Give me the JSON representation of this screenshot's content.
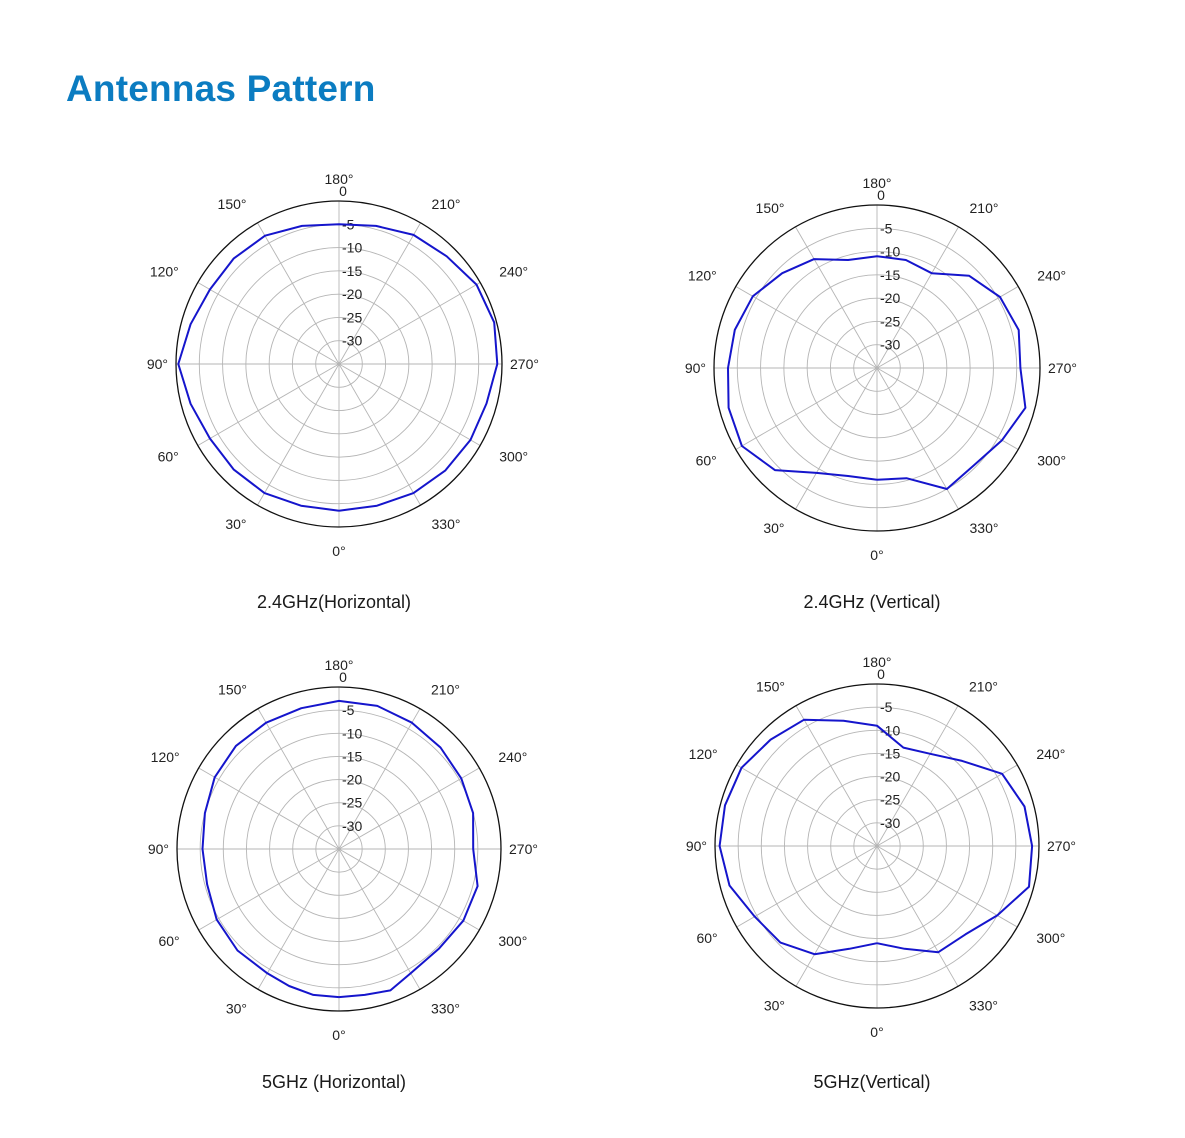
{
  "page": {
    "title": "Antennas Pattern",
    "accent_color": "#0b7cc1"
  },
  "chart_data": [
    {
      "type": "polar",
      "title": "2.4GHz(Horizontal)",
      "r_ticks": [
        "0",
        "-5",
        "-10",
        "-15",
        "-20",
        "-25",
        "-30"
      ],
      "r_range_db": [
        -35,
        0
      ],
      "angle_labels": [
        {
          "deg": 180,
          "label": "180°"
        },
        {
          "deg": 210,
          "label": "210°"
        },
        {
          "deg": 240,
          "label": "240°"
        },
        {
          "deg": 270,
          "label": "270°"
        },
        {
          "deg": 300,
          "label": "300°"
        },
        {
          "deg": 330,
          "label": "330°"
        },
        {
          "deg": 0,
          "label": "0°"
        },
        {
          "deg": 30,
          "label": "30°"
        },
        {
          "deg": 60,
          "label": "60°"
        },
        {
          "deg": 90,
          "label": "90°"
        },
        {
          "deg": 120,
          "label": "120°"
        },
        {
          "deg": 150,
          "label": "150°"
        }
      ],
      "line_color": "#1515cc",
      "series": [
        {
          "angles_deg": [
            0,
            15,
            30,
            45,
            60,
            75,
            90,
            105,
            120,
            135,
            150,
            165,
            180,
            195,
            210,
            225,
            240,
            255,
            270,
            285,
            300,
            315,
            330,
            345
          ],
          "gain_db": [
            -3.5,
            -3.5,
            -3,
            -3,
            -3,
            -2,
            -0.5,
            -2,
            -3,
            -3,
            -3.2,
            -4.3,
            -5,
            -4.3,
            -3,
            -2.3,
            -0.9,
            -0.5,
            -1,
            -2.2,
            -2.4,
            -2.7,
            -3,
            -3.5
          ]
        }
      ]
    },
    {
      "type": "polar",
      "title": "2.4GHz (Vertical)",
      "r_ticks": [
        "0",
        "-5",
        "-10",
        "-15",
        "-20",
        "-25",
        "-30"
      ],
      "r_range_db": [
        -35,
        0
      ],
      "angle_labels": [
        {
          "deg": 180,
          "label": "180°"
        },
        {
          "deg": 210,
          "label": "210°"
        },
        {
          "deg": 240,
          "label": "240°"
        },
        {
          "deg": 270,
          "label": "270°"
        },
        {
          "deg": 300,
          "label": "300°"
        },
        {
          "deg": 330,
          "label": "330°"
        },
        {
          "deg": 0,
          "label": "0°"
        },
        {
          "deg": 30,
          "label": "30°"
        },
        {
          "deg": 60,
          "label": "60°"
        },
        {
          "deg": 90,
          "label": "90°"
        },
        {
          "deg": 120,
          "label": "120°"
        },
        {
          "deg": 150,
          "label": "150°"
        }
      ],
      "line_color": "#1515cc",
      "series": [
        {
          "angles_deg": [
            0,
            15,
            30,
            45,
            60,
            75,
            90,
            105,
            120,
            135,
            150,
            165,
            180,
            195,
            210,
            225,
            240,
            255,
            270,
            285,
            300,
            315,
            330,
            345
          ],
          "gain_db": [
            -11,
            -11,
            -9,
            -4,
            -1.5,
            -2,
            -3,
            -3.4,
            -4.2,
            -6.2,
            -8,
            -11,
            -11,
            -11,
            -11.5,
            -7,
            -4.5,
            -3.5,
            -4.2,
            -2,
            -4,
            -5.5,
            -5,
            -10.5
          ]
        }
      ]
    },
    {
      "type": "polar",
      "title": "5GHz (Horizontal)",
      "r_ticks": [
        "0",
        "-5",
        "-10",
        "-15",
        "-20",
        "-25",
        "-30"
      ],
      "r_range_db": [
        -35,
        0
      ],
      "angle_labels": [
        {
          "deg": 180,
          "label": "180°"
        },
        {
          "deg": 210,
          "label": "210°"
        },
        {
          "deg": 240,
          "label": "240°"
        },
        {
          "deg": 270,
          "label": "270°"
        },
        {
          "deg": 300,
          "label": "300°"
        },
        {
          "deg": 330,
          "label": "330°"
        },
        {
          "deg": 0,
          "label": "0°"
        },
        {
          "deg": 30,
          "label": "30°"
        },
        {
          "deg": 60,
          "label": "60°"
        },
        {
          "deg": 90,
          "label": "90°"
        },
        {
          "deg": 120,
          "label": "120°"
        },
        {
          "deg": 150,
          "label": "150°"
        }
      ],
      "line_color": "#1515cc",
      "series": [
        {
          "angles_deg": [
            0,
            10,
            20,
            30,
            45,
            60,
            75,
            90,
            105,
            120,
            135,
            150,
            165,
            180,
            195,
            210,
            225,
            240,
            255,
            270,
            285,
            300,
            315,
            330,
            340,
            350
          ],
          "gain_db": [
            -3,
            -3,
            -3.5,
            -4,
            -4,
            -4.5,
            -5.5,
            -5.5,
            -5,
            -4,
            -3.5,
            -3.5,
            -3.5,
            -3,
            -3,
            -3.5,
            -4,
            -4.5,
            -5,
            -6,
            -4,
            -4,
            -4.5,
            -4,
            -2.5,
            -3
          ]
        }
      ]
    },
    {
      "type": "polar",
      "title": "5GHz(Vertical)",
      "r_ticks": [
        "0",
        "-5",
        "-10",
        "-15",
        "-20",
        "-25",
        "-30"
      ],
      "r_range_db": [
        -35,
        0
      ],
      "angle_labels": [
        {
          "deg": 180,
          "label": "180°"
        },
        {
          "deg": 210,
          "label": "210°"
        },
        {
          "deg": 240,
          "label": "240°"
        },
        {
          "deg": 270,
          "label": "270°"
        },
        {
          "deg": 300,
          "label": "300°"
        },
        {
          "deg": 330,
          "label": "330°"
        },
        {
          "deg": 0,
          "label": "0°"
        },
        {
          "deg": 30,
          "label": "30°"
        },
        {
          "deg": 60,
          "label": "60°"
        },
        {
          "deg": 90,
          "label": "90°"
        },
        {
          "deg": 120,
          "label": "120°"
        },
        {
          "deg": 150,
          "label": "150°"
        }
      ],
      "line_color": "#1515cc",
      "series": [
        {
          "angles_deg": [
            0,
            15,
            30,
            45,
            60,
            75,
            90,
            105,
            120,
            135,
            150,
            165,
            180,
            195,
            210,
            225,
            240,
            255,
            270,
            285,
            300,
            315,
            330,
            345
          ],
          "gain_db": [
            -14,
            -12,
            -8,
            -5.5,
            -4.5,
            -2,
            -1,
            -1,
            -1.2,
            -2.5,
            -3.5,
            -7,
            -9,
            -13,
            -12,
            -9,
            -3.8,
            -2,
            -1.5,
            -1,
            -5,
            -8,
            -8.5,
            -12
          ]
        }
      ]
    }
  ]
}
